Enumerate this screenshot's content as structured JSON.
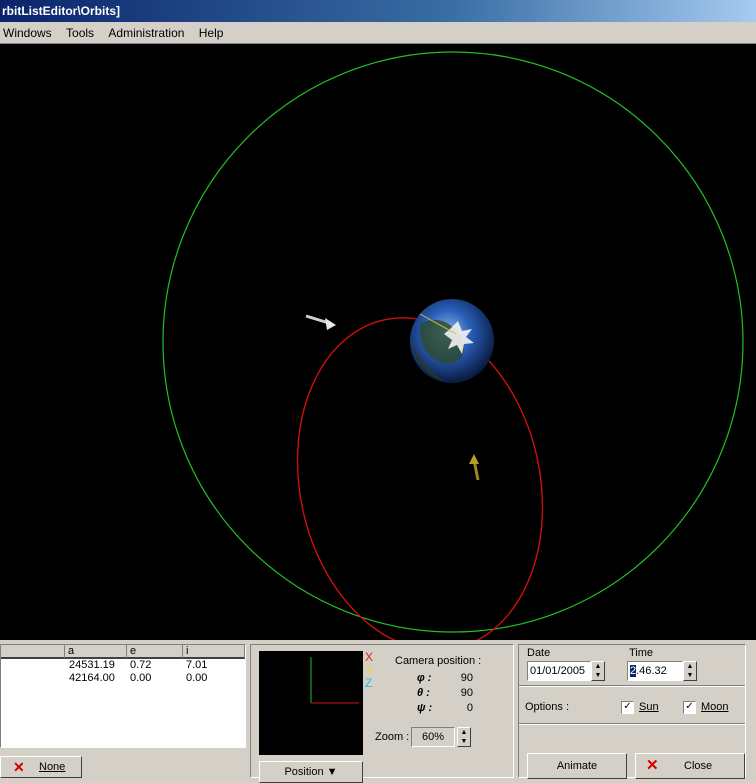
{
  "window": {
    "title": "rbitListEditor\\Orbits]"
  },
  "menu": [
    {
      "label": "Windows",
      "accel": "W"
    },
    {
      "label": "Tools",
      "accel": "T"
    },
    {
      "label": "Administration",
      "accel": "A"
    },
    {
      "label": "Help",
      "accel": "H"
    }
  ],
  "orbits_table": {
    "columns": [
      "a",
      "e",
      "i"
    ],
    "rows": [
      {
        "a": "24531.19",
        "e": "0.72",
        "i": "7.01"
      },
      {
        "a": "42164.00",
        "e": "0.00",
        "i": "0.00"
      }
    ]
  },
  "none_button": {
    "label": "None",
    "icon": "red-x-icon"
  },
  "camera": {
    "axes": [
      "X",
      "Y",
      "Z"
    ],
    "title": "Camera position :",
    "phi_label": "φ :",
    "phi": "90",
    "theta_label": "θ :",
    "theta": "90",
    "psi_label": "ψ :",
    "psi": "0",
    "zoom_label": "Zoom :",
    "zoom": "60%",
    "position_button": "Position"
  },
  "datetime": {
    "date_label": "Date",
    "date": "01/01/2005",
    "time_label": "Time",
    "time_first": "2",
    "time_rest": ".46.32",
    "options_label": "Options :",
    "sun_label": "Sun",
    "sun_checked": true,
    "moon_label": "Moon",
    "moon_checked": true,
    "animate_button": "Animate",
    "close_button": "Close"
  },
  "colors": {
    "green_orbit": "#22c022",
    "red_orbit": "#cc1010",
    "earth": "#1e4fa8"
  }
}
